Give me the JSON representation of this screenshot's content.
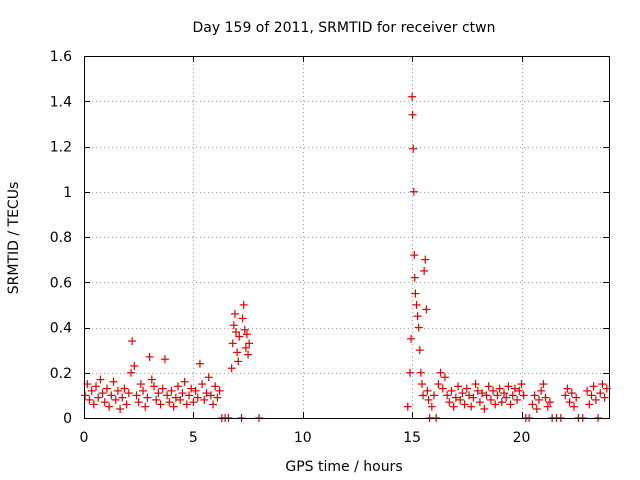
{
  "chart_data": {
    "type": "scatter",
    "title": "Day 159 of 2011, SRMTID for receiver ctwn",
    "xlabel": "GPS time / hours",
    "ylabel": "SRMTID / TECUs",
    "xlim": [
      0,
      24
    ],
    "ylim": [
      0,
      1.6
    ],
    "xticks": [
      0,
      5,
      10,
      15,
      20
    ],
    "xtick_labels": [
      "0",
      "5",
      "10",
      "15",
      "20"
    ],
    "yticks": [
      0,
      0.2,
      0.4,
      0.6,
      0.8,
      1.0,
      1.2,
      1.4,
      1.6
    ],
    "ytick_labels": [
      "0",
      "0.2",
      "0.4",
      "0.6",
      "0.8",
      "1",
      "1.2",
      "1.4",
      "1.6"
    ],
    "grid": true,
    "marker": "+",
    "series_color": "#e00000",
    "series": [
      {
        "name": "SRMTID",
        "points": [
          [
            0.05,
            0.1
          ],
          [
            0.15,
            0.15
          ],
          [
            0.25,
            0.08
          ],
          [
            0.35,
            0.12
          ],
          [
            0.45,
            0.06
          ],
          [
            0.55,
            0.14
          ],
          [
            0.65,
            0.09
          ],
          [
            0.75,
            0.17
          ],
          [
            0.85,
            0.11
          ],
          [
            0.95,
            0.07
          ],
          [
            1.05,
            0.13
          ],
          [
            1.15,
            0.05
          ],
          [
            1.25,
            0.1
          ],
          [
            1.35,
            0.16
          ],
          [
            1.45,
            0.08
          ],
          [
            1.55,
            0.12
          ],
          [
            1.65,
            0.04
          ],
          [
            1.75,
            0.09
          ],
          [
            1.85,
            0.13
          ],
          [
            1.95,
            0.06
          ],
          [
            2.05,
            0.11
          ],
          [
            2.15,
            0.2
          ],
          [
            2.2,
            0.34
          ],
          [
            2.3,
            0.23
          ],
          [
            2.4,
            0.1
          ],
          [
            2.5,
            0.07
          ],
          [
            2.6,
            0.15
          ],
          [
            2.7,
            0.12
          ],
          [
            2.8,
            0.05
          ],
          [
            2.9,
            0.09
          ],
          [
            3.0,
            0.27
          ],
          [
            3.1,
            0.17
          ],
          [
            3.2,
            0.14
          ],
          [
            3.3,
            0.08
          ],
          [
            3.4,
            0.11
          ],
          [
            3.5,
            0.06
          ],
          [
            3.6,
            0.13
          ],
          [
            3.7,
            0.26
          ],
          [
            3.8,
            0.1
          ],
          [
            3.9,
            0.07
          ],
          [
            4.0,
            0.12
          ],
          [
            4.1,
            0.05
          ],
          [
            4.2,
            0.09
          ],
          [
            4.3,
            0.14
          ],
          [
            4.4,
            0.08
          ],
          [
            4.5,
            0.11
          ],
          [
            4.6,
            0.16
          ],
          [
            4.7,
            0.06
          ],
          [
            4.8,
            0.1
          ],
          [
            4.9,
            0.13
          ],
          [
            5.0,
            0.07
          ],
          [
            5.1,
            0.12
          ],
          [
            5.2,
            0.09
          ],
          [
            5.3,
            0.24
          ],
          [
            5.4,
            0.15
          ],
          [
            5.5,
            0.08
          ],
          [
            5.6,
            0.11
          ],
          [
            5.7,
            0.18
          ],
          [
            5.8,
            0.1
          ],
          [
            5.9,
            0.06
          ],
          [
            6.0,
            0.14
          ],
          [
            6.1,
            0.09
          ],
          [
            6.2,
            0.12
          ],
          [
            6.3,
            0.0
          ],
          [
            6.45,
            0.0
          ],
          [
            6.6,
            0.0
          ],
          [
            6.75,
            0.22
          ],
          [
            6.8,
            0.33
          ],
          [
            6.85,
            0.41
          ],
          [
            6.9,
            0.46
          ],
          [
            6.95,
            0.38
          ],
          [
            7.0,
            0.29
          ],
          [
            7.05,
            0.25
          ],
          [
            7.1,
            0.36
          ],
          [
            7.2,
            0.0
          ],
          [
            7.25,
            0.44
          ],
          [
            7.3,
            0.5
          ],
          [
            7.35,
            0.39
          ],
          [
            7.4,
            0.31
          ],
          [
            7.45,
            0.37
          ],
          [
            7.5,
            0.28
          ],
          [
            7.55,
            0.33
          ],
          [
            8.0,
            0.0
          ],
          [
            14.8,
            0.05
          ],
          [
            14.9,
            0.2
          ],
          [
            14.95,
            0.35
          ],
          [
            15.0,
            1.42
          ],
          [
            15.02,
            1.34
          ],
          [
            15.05,
            1.19
          ],
          [
            15.08,
            1.0
          ],
          [
            15.1,
            0.72
          ],
          [
            15.12,
            0.62
          ],
          [
            15.15,
            0.55
          ],
          [
            15.2,
            0.5
          ],
          [
            15.25,
            0.45
          ],
          [
            15.3,
            0.4
          ],
          [
            15.35,
            0.3
          ],
          [
            15.4,
            0.2
          ],
          [
            15.45,
            0.15
          ],
          [
            15.5,
            0.1
          ],
          [
            15.55,
            0.65
          ],
          [
            15.6,
            0.7
          ],
          [
            15.65,
            0.48
          ],
          [
            15.7,
            0.12
          ],
          [
            15.75,
            0.08
          ],
          [
            15.8,
            0.0
          ],
          [
            15.9,
            0.05
          ],
          [
            16.0,
            0.1
          ],
          [
            16.1,
            0.0
          ],
          [
            16.2,
            0.15
          ],
          [
            16.3,
            0.2
          ],
          [
            16.4,
            0.13
          ],
          [
            16.5,
            0.18
          ],
          [
            16.6,
            0.1
          ],
          [
            16.7,
            0.07
          ],
          [
            16.8,
            0.12
          ],
          [
            16.9,
            0.05
          ],
          [
            17.0,
            0.09
          ],
          [
            17.1,
            0.14
          ],
          [
            17.2,
            0.08
          ],
          [
            17.3,
            0.11
          ],
          [
            17.4,
            0.06
          ],
          [
            17.5,
            0.13
          ],
          [
            17.6,
            0.1
          ],
          [
            17.7,
            0.05
          ],
          [
            17.8,
            0.09
          ],
          [
            17.9,
            0.15
          ],
          [
            18.0,
            0.12
          ],
          [
            18.1,
            0.07
          ],
          [
            18.2,
            0.11
          ],
          [
            18.3,
            0.04
          ],
          [
            18.4,
            0.1
          ],
          [
            18.5,
            0.14
          ],
          [
            18.6,
            0.08
          ],
          [
            18.7,
            0.12
          ],
          [
            18.8,
            0.06
          ],
          [
            18.9,
            0.1
          ],
          [
            19.0,
            0.13
          ],
          [
            19.1,
            0.07
          ],
          [
            19.2,
            0.11
          ],
          [
            19.3,
            0.09
          ],
          [
            19.4,
            0.14
          ],
          [
            19.5,
            0.06
          ],
          [
            19.6,
            0.1
          ],
          [
            19.7,
            0.13
          ],
          [
            19.8,
            0.08
          ],
          [
            19.9,
            0.12
          ],
          [
            20.0,
            0.15
          ],
          [
            20.1,
            0.1
          ],
          [
            20.2,
            0.0
          ],
          [
            20.35,
            0.0
          ],
          [
            20.5,
            0.06
          ],
          [
            20.6,
            0.1
          ],
          [
            20.7,
            0.04
          ],
          [
            20.8,
            0.08
          ],
          [
            20.9,
            0.12
          ],
          [
            21.0,
            0.15
          ],
          [
            21.1,
            0.09
          ],
          [
            21.2,
            0.05
          ],
          [
            21.3,
            0.07
          ],
          [
            21.4,
            0.0
          ],
          [
            21.6,
            0.0
          ],
          [
            21.8,
            0.0
          ],
          [
            22.0,
            0.1
          ],
          [
            22.1,
            0.13
          ],
          [
            22.2,
            0.07
          ],
          [
            22.3,
            0.11
          ],
          [
            22.4,
            0.05
          ],
          [
            22.5,
            0.09
          ],
          [
            22.6,
            0.0
          ],
          [
            22.8,
            0.0
          ],
          [
            23.0,
            0.12
          ],
          [
            23.1,
            0.06
          ],
          [
            23.2,
            0.1
          ],
          [
            23.3,
            0.14
          ],
          [
            23.4,
            0.08
          ],
          [
            23.5,
            0.0
          ],
          [
            23.6,
            0.11
          ],
          [
            23.7,
            0.15
          ],
          [
            23.8,
            0.09
          ],
          [
            23.9,
            0.13
          ]
        ]
      }
    ]
  }
}
